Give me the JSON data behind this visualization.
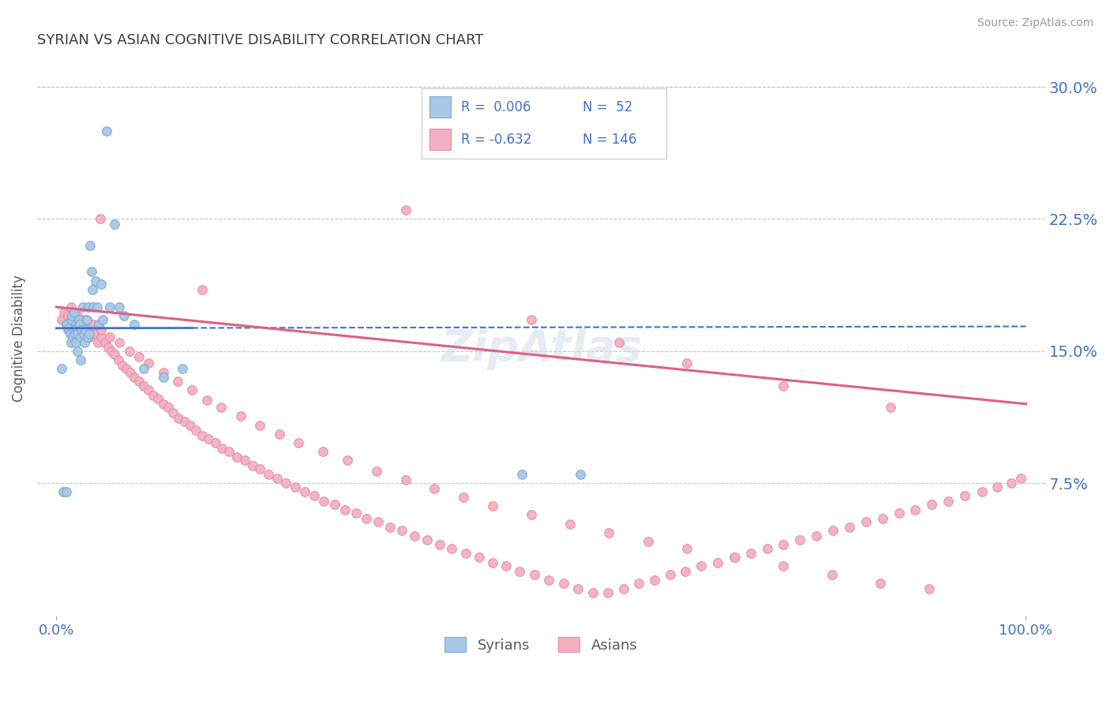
{
  "title": "SYRIAN VS ASIAN COGNITIVE DISABILITY CORRELATION CHART",
  "source": "Source: ZipAtlas.com",
  "ylabel": "Cognitive Disability",
  "title_color": "#3d3d3d",
  "title_fontsize": 13,
  "axis_label_color": "#5a5a5a",
  "tick_label_color": "#4472c4",
  "background_color": "#ffffff",
  "plot_bg_color": "#ffffff",
  "grid_color": "#c8c8c8",
  "syrian_color": "#a8c8e8",
  "asian_color": "#f4b0c0",
  "syrian_line_color": "#4472c4",
  "asian_line_color": "#e06080",
  "syrian_marker_edge": "#80a8d0",
  "asian_marker_edge": "#e090a8",
  "legend_text_color": "#4472c4",
  "legend_label_syrian": "Syrians",
  "legend_label_asian": "Asians",
  "xlim": [
    -0.02,
    1.02
  ],
  "ylim": [
    0.0,
    0.315
  ],
  "yticks_right": [
    0.075,
    0.15,
    0.225,
    0.3
  ],
  "ytick_labels_right": [
    "7.5%",
    "15.0%",
    "22.5%",
    "30.0%"
  ],
  "syrian_scatter_x": [
    0.005,
    0.007,
    0.01,
    0.01,
    0.012,
    0.013,
    0.014,
    0.015,
    0.015,
    0.016,
    0.017,
    0.018,
    0.018,
    0.019,
    0.02,
    0.02,
    0.021,
    0.022,
    0.022,
    0.023,
    0.024,
    0.025,
    0.025,
    0.026,
    0.027,
    0.028,
    0.029,
    0.03,
    0.031,
    0.032,
    0.033,
    0.034,
    0.035,
    0.036,
    0.037,
    0.038,
    0.04,
    0.042,
    0.044,
    0.046,
    0.048,
    0.052,
    0.055,
    0.06,
    0.065,
    0.07,
    0.08,
    0.09,
    0.11,
    0.13,
    0.48,
    0.54
  ],
  "syrian_scatter_y": [
    0.14,
    0.07,
    0.165,
    0.07,
    0.162,
    0.163,
    0.16,
    0.168,
    0.155,
    0.17,
    0.158,
    0.162,
    0.172,
    0.16,
    0.165,
    0.155,
    0.163,
    0.16,
    0.15,
    0.168,
    0.165,
    0.158,
    0.145,
    0.162,
    0.175,
    0.16,
    0.155,
    0.162,
    0.168,
    0.158,
    0.175,
    0.16,
    0.21,
    0.195,
    0.185,
    0.175,
    0.19,
    0.175,
    0.165,
    0.188,
    0.168,
    0.275,
    0.175,
    0.222,
    0.175,
    0.17,
    0.165,
    0.14,
    0.135,
    0.14,
    0.08,
    0.08
  ],
  "asian_scatter_x": [
    0.005,
    0.008,
    0.01,
    0.012,
    0.015,
    0.018,
    0.02,
    0.022,
    0.025,
    0.028,
    0.03,
    0.032,
    0.035,
    0.038,
    0.04,
    0.043,
    0.046,
    0.05,
    0.053,
    0.057,
    0.06,
    0.064,
    0.068,
    0.072,
    0.076,
    0.08,
    0.085,
    0.09,
    0.095,
    0.1,
    0.105,
    0.11,
    0.115,
    0.12,
    0.126,
    0.132,
    0.138,
    0.144,
    0.15,
    0.157,
    0.164,
    0.171,
    0.178,
    0.186,
    0.194,
    0.202,
    0.21,
    0.219,
    0.228,
    0.237,
    0.246,
    0.256,
    0.266,
    0.276,
    0.287,
    0.298,
    0.309,
    0.32,
    0.332,
    0.344,
    0.356,
    0.369,
    0.382,
    0.395,
    0.408,
    0.422,
    0.436,
    0.45,
    0.464,
    0.478,
    0.493,
    0.508,
    0.523,
    0.538,
    0.553,
    0.569,
    0.585,
    0.601,
    0.617,
    0.633,
    0.649,
    0.665,
    0.682,
    0.699,
    0.716,
    0.733,
    0.75,
    0.767,
    0.784,
    0.801,
    0.818,
    0.835,
    0.852,
    0.869,
    0.886,
    0.903,
    0.92,
    0.937,
    0.955,
    0.97,
    0.985,
    0.995,
    0.015,
    0.022,
    0.03,
    0.038,
    0.046,
    0.055,
    0.065,
    0.075,
    0.085,
    0.095,
    0.11,
    0.125,
    0.14,
    0.155,
    0.17,
    0.19,
    0.21,
    0.23,
    0.25,
    0.275,
    0.3,
    0.33,
    0.36,
    0.39,
    0.42,
    0.45,
    0.49,
    0.53,
    0.57,
    0.61,
    0.65,
    0.7,
    0.75,
    0.8,
    0.85,
    0.9,
    0.045,
    0.36,
    0.49,
    0.58,
    0.65,
    0.75,
    0.86,
    0.15
  ],
  "asian_scatter_y": [
    0.168,
    0.172,
    0.165,
    0.17,
    0.163,
    0.168,
    0.165,
    0.162,
    0.16,
    0.163,
    0.162,
    0.165,
    0.158,
    0.162,
    0.16,
    0.155,
    0.158,
    0.155,
    0.152,
    0.15,
    0.148,
    0.145,
    0.142,
    0.14,
    0.138,
    0.135,
    0.133,
    0.13,
    0.128,
    0.125,
    0.123,
    0.12,
    0.118,
    0.115,
    0.112,
    0.11,
    0.108,
    0.105,
    0.102,
    0.1,
    0.098,
    0.095,
    0.093,
    0.09,
    0.088,
    0.085,
    0.083,
    0.08,
    0.078,
    0.075,
    0.073,
    0.07,
    0.068,
    0.065,
    0.063,
    0.06,
    0.058,
    0.055,
    0.053,
    0.05,
    0.048,
    0.045,
    0.043,
    0.04,
    0.038,
    0.035,
    0.033,
    0.03,
    0.028,
    0.025,
    0.023,
    0.02,
    0.018,
    0.015,
    0.013,
    0.013,
    0.015,
    0.018,
    0.02,
    0.023,
    0.025,
    0.028,
    0.03,
    0.033,
    0.035,
    0.038,
    0.04,
    0.043,
    0.045,
    0.048,
    0.05,
    0.053,
    0.055,
    0.058,
    0.06,
    0.063,
    0.065,
    0.068,
    0.07,
    0.073,
    0.075,
    0.078,
    0.175,
    0.17,
    0.168,
    0.165,
    0.162,
    0.158,
    0.155,
    0.15,
    0.147,
    0.143,
    0.138,
    0.133,
    0.128,
    0.122,
    0.118,
    0.113,
    0.108,
    0.103,
    0.098,
    0.093,
    0.088,
    0.082,
    0.077,
    0.072,
    0.067,
    0.062,
    0.057,
    0.052,
    0.047,
    0.042,
    0.038,
    0.033,
    0.028,
    0.023,
    0.018,
    0.015,
    0.225,
    0.23,
    0.168,
    0.155,
    0.143,
    0.13,
    0.118,
    0.185
  ],
  "syrian_line_x": [
    0.0,
    1.0
  ],
  "syrian_line_y_start": 0.163,
  "syrian_line_y_end": 0.164,
  "asian_line_x": [
    0.0,
    1.0
  ],
  "asian_line_y_start": 0.175,
  "asian_line_y_end": 0.12
}
